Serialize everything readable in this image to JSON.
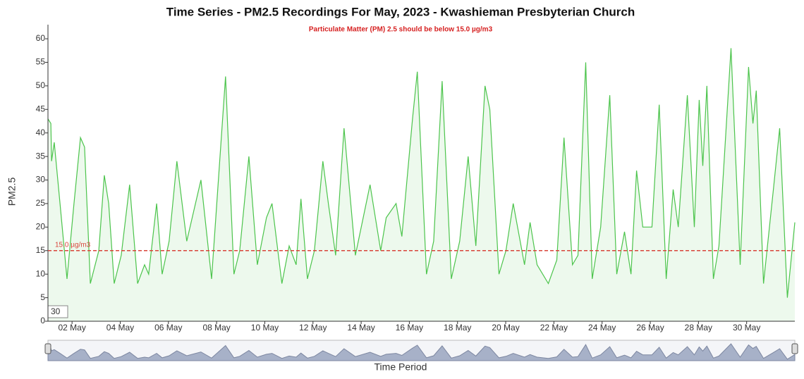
{
  "chart_data": {
    "type": "line",
    "title": "Time Series - PM2.5 Recordings For May, 2023 - Kwashieman Presbyterian Church",
    "subtitle": "Particulate Matter (PM) 2.5 should be below 15.0 µg/m3",
    "y_label": "PM2.5",
    "x_label": "Time Period",
    "rolling_period": 30,
    "color": "#4cc44c",
    "threshold": {
      "value": 15,
      "label": "15.0 µg/m3",
      "color": "#d9443a"
    },
    "x": [
      1.0,
      1.12,
      1.15,
      1.26,
      1.5,
      1.79,
      2.08,
      2.35,
      2.52,
      2.76,
      3.11,
      3.34,
      3.52,
      3.75,
      4.04,
      4.39,
      4.72,
      5.01,
      5.18,
      5.51,
      5.74,
      6.03,
      6.35,
      6.76,
      7.35,
      7.79,
      8.37,
      8.72,
      8.96,
      9.34,
      9.69,
      10.07,
      10.3,
      10.71,
      11.01,
      11.3,
      11.5,
      11.77,
      12.06,
      12.41,
      12.64,
      12.94,
      13.29,
      13.76,
      14.37,
      14.81,
      15.04,
      15.45,
      15.69,
      16.13,
      16.33,
      16.71,
      17.01,
      17.36,
      17.74,
      18.09,
      18.44,
      18.76,
      19.14,
      19.34,
      19.72,
      20.01,
      20.31,
      20.78,
      21.01,
      21.3,
      21.77,
      22.12,
      22.42,
      22.77,
      23.0,
      23.32,
      23.59,
      23.94,
      24.32,
      24.61,
      24.93,
      25.2,
      25.43,
      25.69,
      26.07,
      26.37,
      26.66,
      26.95,
      27.16,
      27.54,
      27.83,
      28.03,
      28.18,
      28.35,
      28.62,
      28.85,
      29.35,
      29.73,
      30.08,
      30.26,
      30.4,
      30.7,
      31.11,
      31.37,
      31.69,
      32.0
    ],
    "values": [
      43,
      42,
      34,
      38,
      25,
      9,
      25,
      39,
      37,
      8,
      15,
      31,
      25,
      8,
      14,
      29,
      8,
      12,
      10,
      25,
      10,
      17,
      34,
      17,
      30,
      9,
      52,
      10,
      15,
      35,
      12,
      22,
      25,
      8,
      16,
      12,
      26,
      9,
      15,
      34,
      25,
      14,
      41,
      14,
      29,
      15,
      22,
      25,
      18,
      43,
      53,
      10,
      17,
      51,
      9,
      17,
      35,
      16,
      50,
      45,
      10,
      15,
      25,
      12,
      21,
      12,
      8,
      13,
      39,
      12,
      14,
      55,
      9,
      20,
      48,
      10,
      19,
      10,
      32,
      20,
      20,
      46,
      9,
      28,
      20,
      48,
      20,
      47,
      33,
      50,
      9,
      16,
      58,
      12,
      54,
      42,
      49,
      8,
      28,
      41,
      5,
      21
    ],
    "xlim": [
      1,
      32
    ],
    "xticks": [
      {
        "value": 2,
        "label": "02 May"
      },
      {
        "value": 4,
        "label": "04 May"
      },
      {
        "value": 6,
        "label": "06 May"
      },
      {
        "value": 8,
        "label": "08 May"
      },
      {
        "value": 10,
        "label": "10 May"
      },
      {
        "value": 12,
        "label": "12 May"
      },
      {
        "value": 14,
        "label": "14 May"
      },
      {
        "value": 16,
        "label": "16 May"
      },
      {
        "value": 18,
        "label": "18 May"
      },
      {
        "value": 20,
        "label": "20 May"
      },
      {
        "value": 22,
        "label": "22 May"
      },
      {
        "value": 24,
        "label": "24 May"
      },
      {
        "value": 26,
        "label": "26 May"
      },
      {
        "value": 28,
        "label": "28 May"
      },
      {
        "value": 30,
        "label": "30 May"
      }
    ],
    "ylim": [
      0,
      63
    ],
    "yticks": [
      0,
      5,
      10,
      15,
      20,
      25,
      30,
      35,
      40,
      45,
      50,
      55,
      60
    ],
    "grid": false
  }
}
